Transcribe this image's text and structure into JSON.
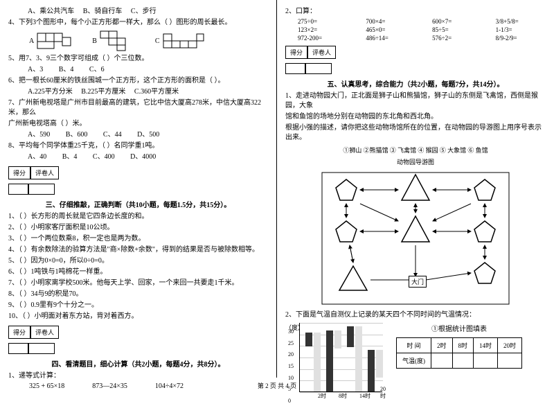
{
  "left": {
    "q3_opts": {
      "a": "A、乘公共汽车",
      "b": "B、骑自行车",
      "c": "C、步行"
    },
    "q4": "4、下列3个图形中，每个小正方形都一样大，那么（   ）图形的周长最长。",
    "q4_labels": {
      "a": "A",
      "b": "B",
      "c": "C"
    },
    "q5": "5、用7、3、9三个数字可组成（        ）个三位数。",
    "q5_opts": {
      "a": "A、3",
      "b": "B、4",
      "c": "C、6"
    },
    "q6": "6、把一根长60厘米的铁丝围城一个正方形，这个正方形的面积是（   ）。",
    "q6_opts": {
      "a": "A.225平方分米",
      "b": "B.225平方厘米",
      "c": "C.360平方厘米"
    },
    "q7a": "7、广州新电视塔是广州市目前最高的建筑，它比中信大厦高278米，中信大厦高322米，那么",
    "q7b": "广州新电视塔高（   ）米。",
    "q7_opts": {
      "a": "A、590",
      "b": "B、600",
      "c": "C、44",
      "d": "D、500"
    },
    "q8": "8、平均每个同学体重25千克，（    ）名同学重1吨。",
    "q8_opts": {
      "a": "A、40",
      "b": "B、4",
      "c": "C、400",
      "d": "D、4000"
    },
    "score": {
      "a": "得分",
      "b": "评卷人"
    },
    "sec3": "三、仔细推敲，正确判断（共10小题，每题1.5分，共15分）。",
    "j1": "1、（     ）长方形的周长就是它四条边长度的和。",
    "j2": "2、（     ）小明家客厅面积是10公顷。",
    "j3": "3、（     ）一个两位数乘8，积一定也是两为数。",
    "j4": "4、（     ）有余数除法的验算方法是\"商×除数+余数\"，得到的结果是否与被除数相等。",
    "j5": "5、（     ）因为0×0=0，所以0÷0=0。",
    "j6": "6、（     ）1吨铁与1吨棉花一样重。",
    "j7": "7、（     ）小明家离学校500米。他每天上学、回家，一个来回一共要走1千米。",
    "j8": "8、（     ）34与9的积是70。",
    "j9": "9、（     ）0.9里有9个十分之一。",
    "j10": "10、（     ）小明面对着东方站，背对着西方。",
    "sec4": "四、看清题目，细心计算（共2小题，每题4分，共8分）。",
    "c1": "1、递等式计算：",
    "c1a": "325 + 65×18",
    "c1b": "873—24×35",
    "c1c": "104÷4×72"
  },
  "right": {
    "q2": "2、口算：",
    "grid": [
      "275÷0=",
      "700×4=",
      "600×7=",
      "3/8+5/8=",
      "123×2=",
      "465×0=",
      "85÷5=",
      "1-1/3=",
      "972-200=",
      "486÷14=",
      "576÷2=",
      "8/9-2/9="
    ],
    "score": {
      "a": "得分",
      "b": "评卷人"
    },
    "sec5": "五、认真思考，综合能力（共2小题，每题7分，共14分）。",
    "p1a": "1、走进动物园大门，正北面是狮子山和熊猫馆，狮子山的东侧是飞禽馆，西侧是猴园，大象",
    "p1b": "馆和鱼馆的场地分别在动物园的东北角和西北角。",
    "p1c": "    根据小强的描述，请你把这些动物场馆所在的位置，在动物园的导游图上用序号表示出来。",
    "legend": "①狮山  ②熊猫馆  ③ 飞禽馆  ④ 猴园  ⑤ 大象馆  ⑥ 鱼馆",
    "map_title": "动物园导游图",
    "gate": "大门",
    "p2": "2、下面是气温自测仪上记录的某天四个不同时间的气温情况：",
    "chart_ylabel": "（度）",
    "chart_title": "①根据统计图填表",
    "y_ticks": [
      "30",
      "25",
      "20",
      "15",
      "10",
      "5",
      "0"
    ],
    "x_ticks": [
      "2时",
      "8时",
      "14时",
      "20时"
    ],
    "bar_colors": {
      "dark": "#333333",
      "light": "#e0e0e0"
    },
    "bars": [
      {
        "x": 8,
        "dark": 20,
        "light": 85
      },
      {
        "x": 38,
        "dark": 88,
        "light": 26
      },
      {
        "x": 68,
        "dark": 30,
        "light": 94
      },
      {
        "x": 98,
        "dark": 60,
        "light": 40
      }
    ],
    "table": {
      "h1": "时  间",
      "c1": "2时",
      "c2": "8时",
      "c3": "14时",
      "c4": "20时",
      "h2": "气温(度)"
    }
  },
  "footer": "第 2 页  共 4 页"
}
